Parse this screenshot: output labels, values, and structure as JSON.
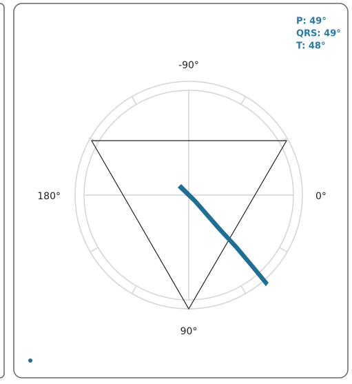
{
  "axes": {
    "top": "-90°",
    "right": "0°",
    "bottom": "90°",
    "left": "180°"
  },
  "readouts": [
    "P: 49°",
    "QRS: 49°",
    "T: 48°"
  ]
}
